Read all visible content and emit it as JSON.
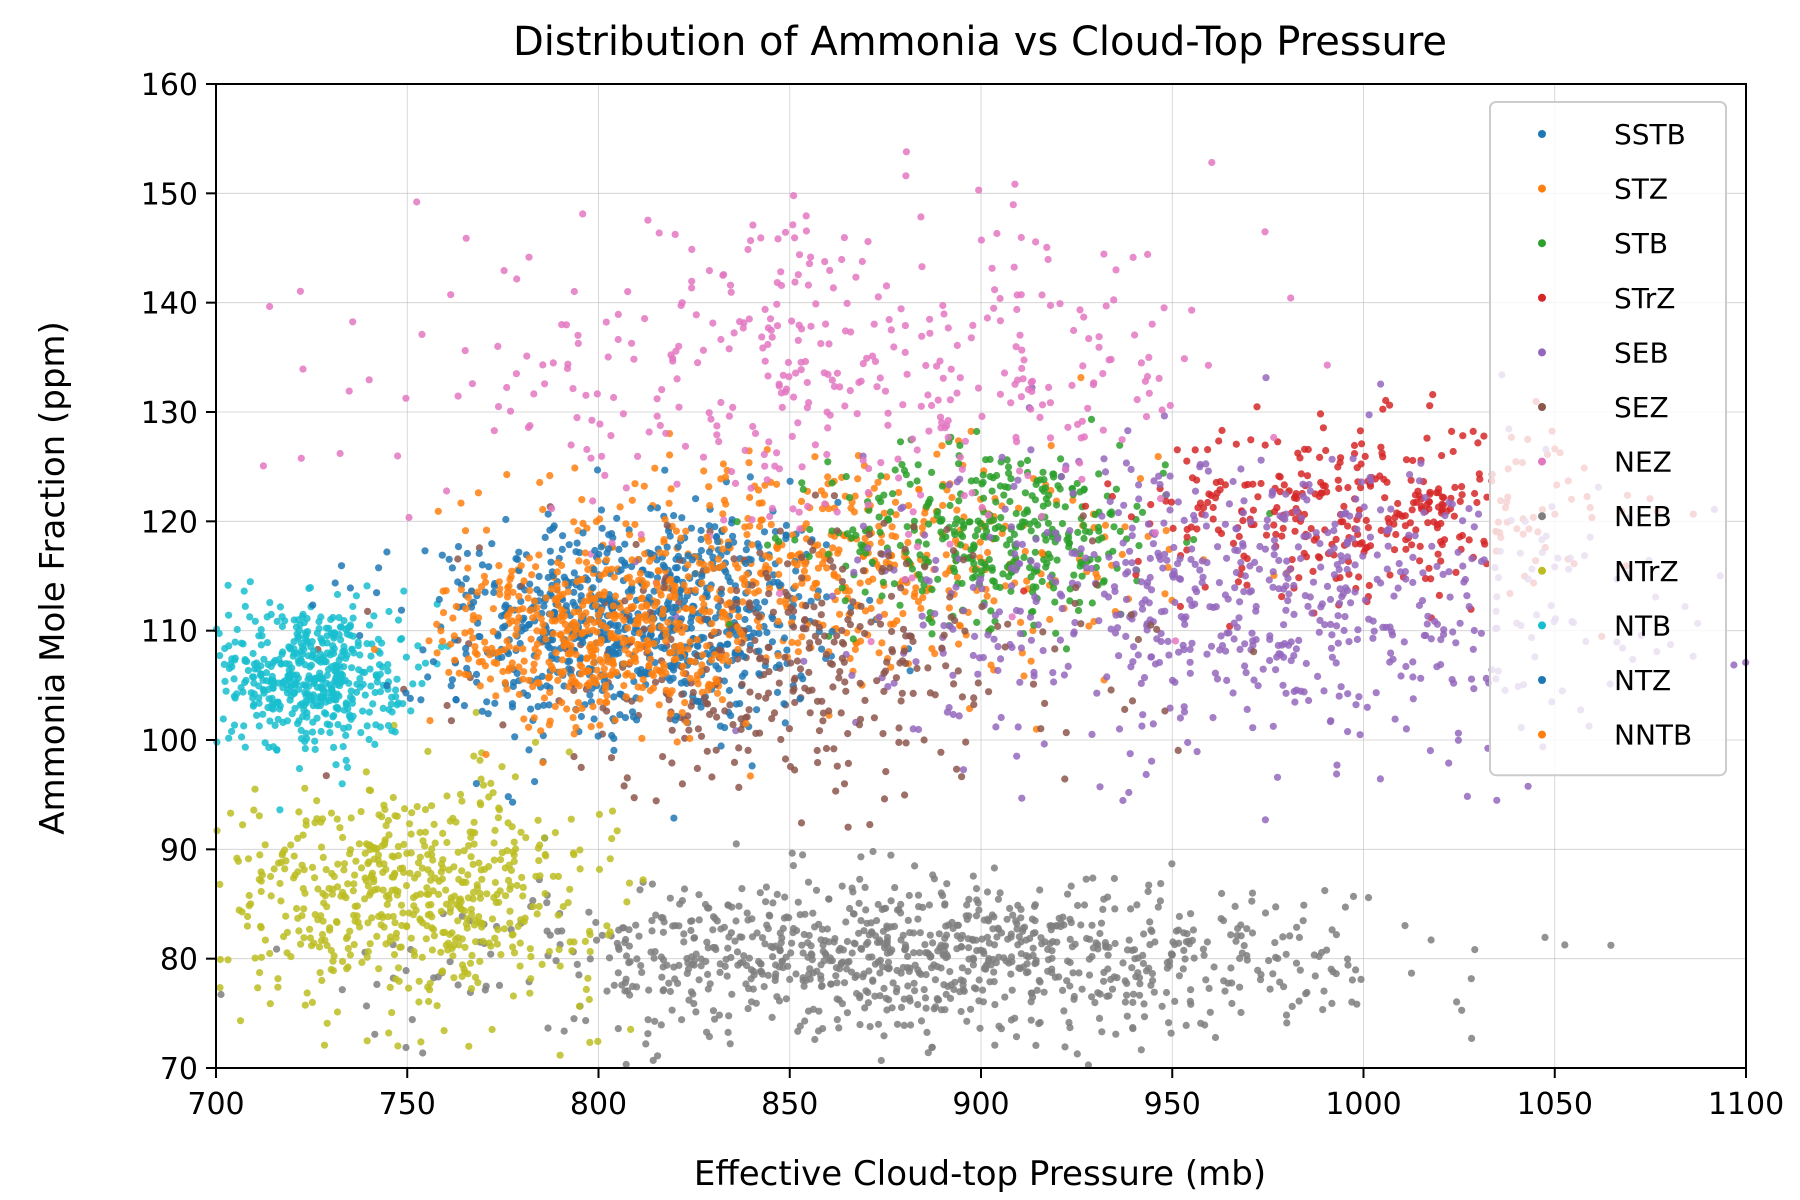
{
  "chart_data": {
    "type": "scatter",
    "title": "Distribution of Ammonia vs Cloud-Top Pressure",
    "xlabel": "Effective Cloud-top Pressure (mb)",
    "ylabel": "Ammonia Mole Fraction (ppm)",
    "xlim": [
      700,
      1100
    ],
    "ylim": [
      70,
      160
    ],
    "xticks": [
      700,
      750,
      800,
      850,
      900,
      950,
      1000,
      1050,
      1100
    ],
    "yticks": [
      70,
      80,
      90,
      100,
      110,
      120,
      130,
      140,
      150,
      160
    ],
    "grid": true,
    "legend_position": "top-right",
    "series": [
      {
        "name": "SSTB",
        "color": "#1f77b4",
        "cluster": {
          "x_mean": 820,
          "x_sd": 22,
          "y_mean": 112,
          "y_sd": 5,
          "n": 420
        }
      },
      {
        "name": "STZ",
        "color": "#ff7f0e",
        "cluster": {
          "x_mean": 860,
          "x_sd": 40,
          "y_mean": 116,
          "y_sd": 5,
          "n": 520
        }
      },
      {
        "name": "STB",
        "color": "#2ca02c",
        "cluster": {
          "x_mean": 905,
          "x_sd": 22,
          "y_mean": 119,
          "y_sd": 4,
          "n": 380
        }
      },
      {
        "name": "STrZ",
        "color": "#d62728",
        "cluster": {
          "x_mean": 1000,
          "x_sd": 30,
          "y_mean": 121,
          "y_sd": 4,
          "n": 360
        }
      },
      {
        "name": "SEB",
        "color": "#9467bd",
        "cluster": {
          "x_mean": 970,
          "x_sd": 50,
          "y_mean": 113,
          "y_sd": 7,
          "n": 700
        }
      },
      {
        "name": "SEZ",
        "color": "#8c564b",
        "cluster": {
          "x_mean": 850,
          "x_sd": 40,
          "y_mean": 107,
          "y_sd": 6,
          "n": 380
        }
      },
      {
        "name": "NEZ",
        "color": "#e377c2",
        "cluster": {
          "x_mean": 860,
          "x_sd": 55,
          "y_mean": 133,
          "y_sd": 7,
          "n": 420
        }
      },
      {
        "name": "NEB",
        "color": "#7f7f7f",
        "cluster": {
          "x_mean": 885,
          "x_sd": 55,
          "y_mean": 80,
          "y_sd": 3.5,
          "n": 1000
        }
      },
      {
        "name": "NTrZ",
        "color": "#bcbd22",
        "cluster": {
          "x_mean": 750,
          "x_sd": 25,
          "y_mean": 86,
          "y_sd": 5,
          "n": 600
        }
      },
      {
        "name": "NTB",
        "color": "#17becf",
        "cluster": {
          "x_mean": 725,
          "x_sd": 12,
          "y_mean": 106,
          "y_sd": 3.5,
          "n": 500
        }
      },
      {
        "name": "NTZ",
        "color": "#1f77b4",
        "cluster": {
          "x_mean": 795,
          "x_sd": 25,
          "y_mean": 110,
          "y_sd": 5,
          "n": 360
        }
      },
      {
        "name": "NNTB",
        "color": "#ff7f0e",
        "cluster": {
          "x_mean": 800,
          "x_sd": 20,
          "y_mean": 109,
          "y_sd": 4,
          "n": 460
        }
      }
    ]
  }
}
